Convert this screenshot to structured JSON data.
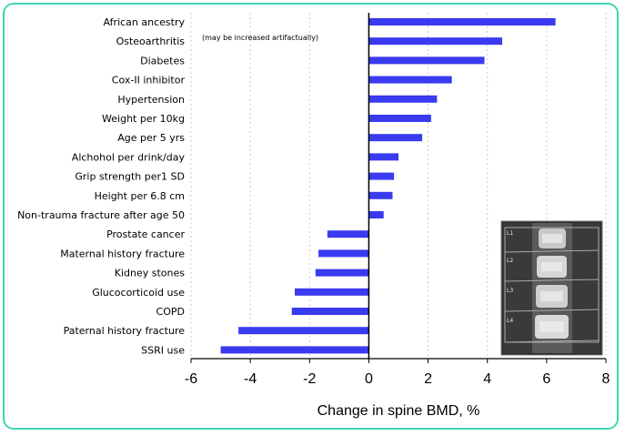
{
  "chart_data": {
    "type": "bar",
    "orientation": "horizontal",
    "categories": [
      "African ancestry",
      "Osteoarthritis",
      "Diabetes",
      "Cox-II inhibitor",
      "Hypertension",
      "Weight per 10kg",
      "Age per 5 yrs",
      "Alchohol per drink/day",
      "Grip strength per1 SD",
      "Height per 6.8 cm",
      "Non-trauma fracture after age 50",
      "Prostate cancer",
      "Maternal history fracture",
      "Kidney stones",
      "Glucocorticoid use",
      "COPD",
      "Paternal history fracture",
      "SSRI use"
    ],
    "values": [
      6.3,
      4.5,
      3.9,
      2.8,
      2.3,
      2.1,
      1.8,
      1.0,
      0.85,
      0.8,
      0.5,
      -1.4,
      -1.7,
      -1.8,
      -2.5,
      -2.6,
      -4.4,
      -5.0
    ],
    "xlabel": "Change in spine BMD, %",
    "ylabel": "",
    "xlim": [
      -6,
      8
    ],
    "xticks": [
      -6,
      -4,
      -2,
      0,
      2,
      4,
      6,
      8
    ],
    "grid": "vertical dashed",
    "bar_color": "#3a3af0",
    "annotation": "(may be increased artifactually)"
  },
  "image_inset": {
    "description_icon": "spine-xray-image",
    "labels": [
      "L1",
      "L2",
      "L3",
      "L4"
    ]
  }
}
